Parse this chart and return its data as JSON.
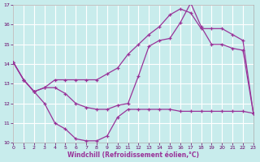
{
  "bg_color": "#c8ecec",
  "grid_color": "#ffffff",
  "line_color": "#993399",
  "xlabel": "Windchill (Refroidissement éolien,°C)",
  "xlim": [
    0,
    23
  ],
  "ylim": [
    10,
    17
  ],
  "xticks": [
    0,
    1,
    2,
    3,
    4,
    5,
    6,
    7,
    8,
    9,
    10,
    11,
    12,
    13,
    14,
    15,
    16,
    17,
    18,
    19,
    20,
    21,
    22,
    23
  ],
  "yticks": [
    10,
    11,
    12,
    13,
    14,
    15,
    16,
    17
  ],
  "line1_x": [
    0,
    1,
    2,
    3,
    4,
    5,
    6,
    7,
    8,
    9,
    10,
    11,
    12,
    13,
    14,
    15,
    16,
    17,
    18,
    19,
    20,
    21,
    22,
    23
  ],
  "line1_y": [
    14.1,
    13.2,
    12.6,
    12.0,
    11.0,
    10.7,
    10.2,
    10.1,
    10.1,
    10.35,
    11.3,
    11.7,
    11.7,
    11.7,
    11.7,
    11.7,
    11.6,
    11.6,
    11.6,
    11.6,
    11.6,
    11.6,
    11.6,
    11.5
  ],
  "line2_x": [
    0,
    1,
    2,
    3,
    4,
    5,
    6,
    7,
    8,
    9,
    10,
    11,
    12,
    13,
    14,
    15,
    16,
    17,
    18,
    19,
    20,
    21,
    22,
    23
  ],
  "line2_y": [
    14.1,
    13.2,
    12.6,
    12.8,
    13.2,
    13.2,
    13.2,
    13.2,
    13.2,
    13.5,
    13.8,
    14.5,
    15.0,
    15.5,
    15.9,
    16.5,
    16.8,
    16.6,
    15.8,
    15.8,
    15.8,
    15.5,
    15.2,
    11.5
  ],
  "line3_x": [
    0,
    1,
    2,
    3,
    4,
    5,
    6,
    7,
    8,
    9,
    10,
    11,
    12,
    13,
    14,
    15,
    16,
    17,
    18,
    19,
    20,
    21,
    22,
    23
  ],
  "line3_y": [
    14.1,
    13.2,
    12.6,
    12.8,
    12.8,
    12.5,
    12.0,
    11.8,
    11.7,
    11.7,
    11.9,
    12.0,
    13.4,
    14.9,
    15.2,
    15.3,
    16.1,
    17.1,
    15.9,
    15.0,
    15.0,
    14.8,
    14.7,
    11.5
  ]
}
